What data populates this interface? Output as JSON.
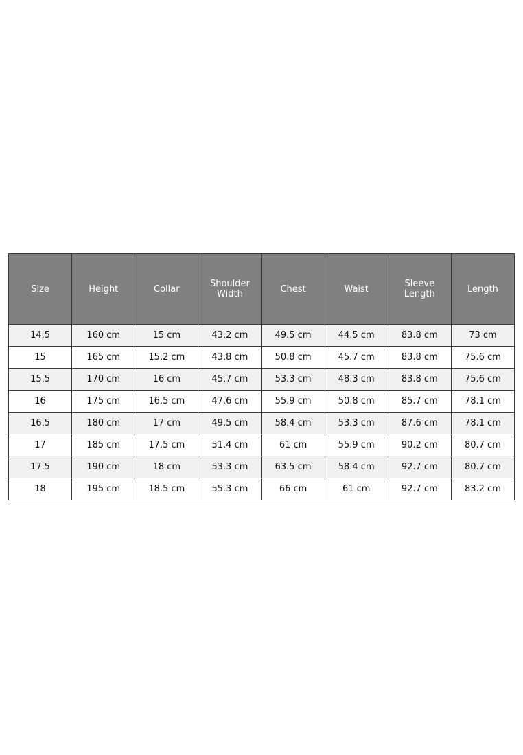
{
  "size_chart": {
    "header_color": "#808080",
    "stripe_color": "#f0f0f0",
    "columns": [
      "Size",
      "Height",
      "Collar",
      "Shoulder\nWidth",
      "Chest",
      "Waist",
      "Sleeve\nLength",
      "Length"
    ],
    "rows": [
      [
        "14.5",
        "160 cm",
        "15 cm",
        "43.2 cm",
        "49.5 cm",
        "44.5 cm",
        "83.8 cm",
        "73 cm"
      ],
      [
        "15",
        "165 cm",
        "15.2 cm",
        "43.8 cm",
        "50.8 cm",
        "45.7 cm",
        "83.8 cm",
        "75.6 cm"
      ],
      [
        "15.5",
        "170 cm",
        "16 cm",
        "45.7 cm",
        "53.3 cm",
        "48.3 cm",
        "83.8 cm",
        "75.6 cm"
      ],
      [
        "16",
        "175 cm",
        "16.5 cm",
        "47.6 cm",
        "55.9 cm",
        "50.8 cm",
        "85.7 cm",
        "78.1 cm"
      ],
      [
        "16.5",
        "180 cm",
        "17 cm",
        "49.5 cm",
        "58.4 cm",
        "53.3 cm",
        "87.6 cm",
        "78.1 cm"
      ],
      [
        "17",
        "185 cm",
        "17.5 cm",
        "51.4 cm",
        "61 cm",
        "55.9 cm",
        "90.2 cm",
        "80.7 cm"
      ],
      [
        "17.5",
        "190 cm",
        "18 cm",
        "53.3 cm",
        "63.5 cm",
        "58.4 cm",
        "92.7 cm",
        "80.7 cm"
      ],
      [
        "18",
        "195 cm",
        "18.5 cm",
        "55.3 cm",
        "66 cm",
        "61 cm",
        "92.7 cm",
        "83.2 cm"
      ]
    ]
  }
}
